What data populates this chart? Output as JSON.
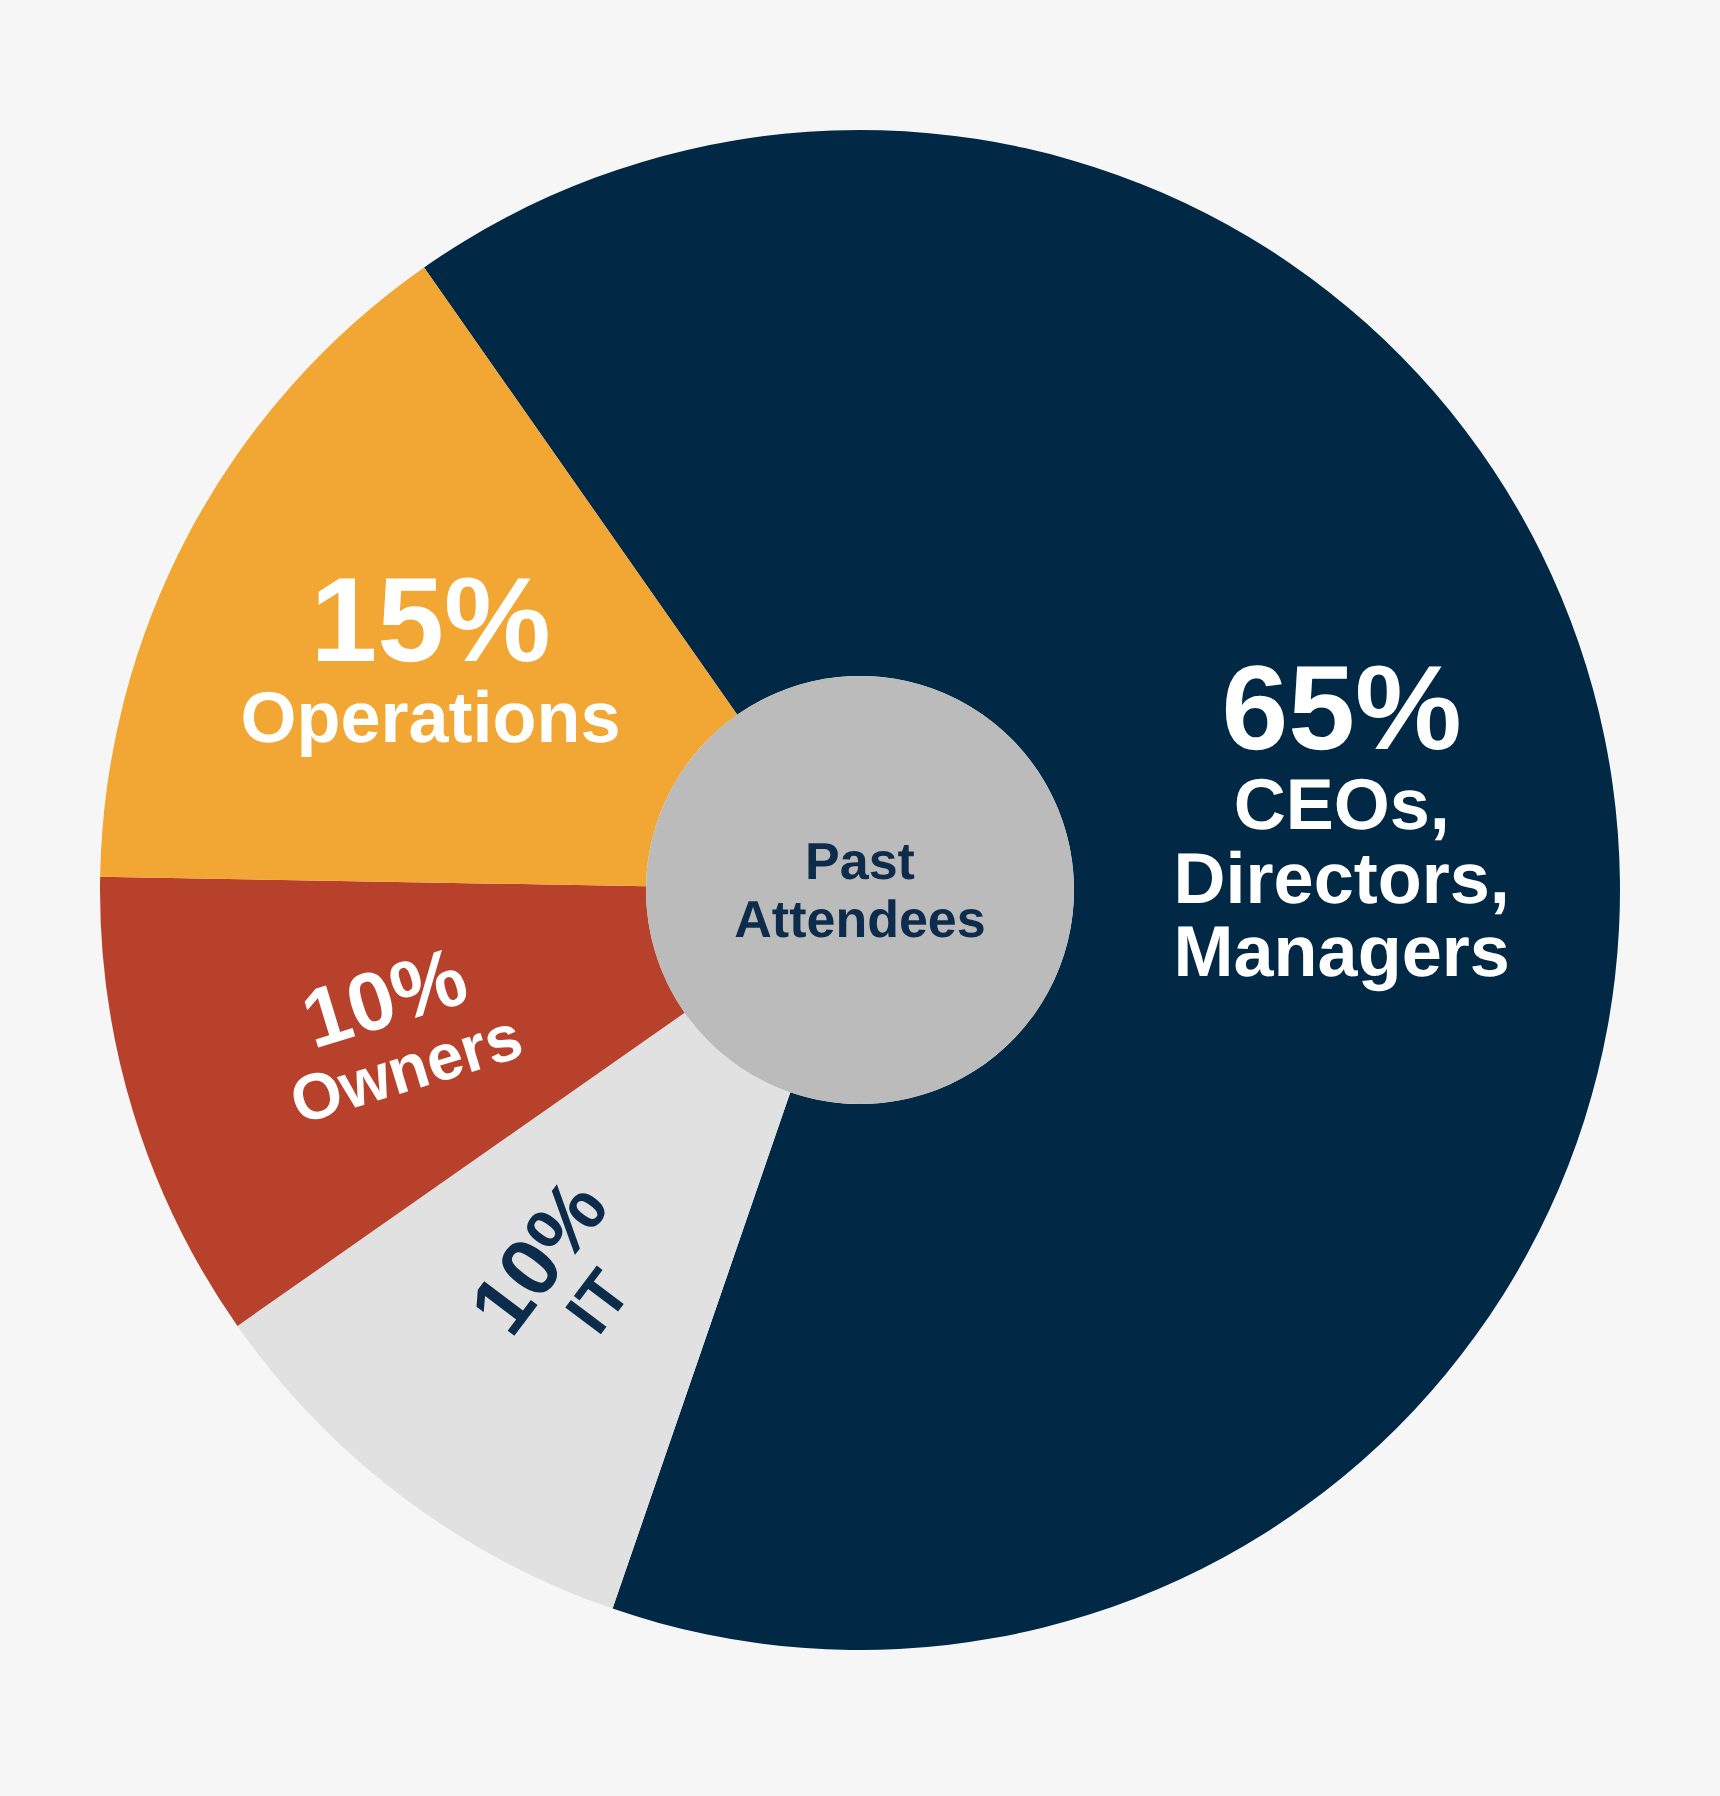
{
  "chart_data": {
    "type": "donut",
    "title": "Past Attendees",
    "categories": [
      "CEOs, Directors, Managers",
      "IT",
      "Owners",
      "Operations"
    ],
    "values": [
      65,
      10,
      10,
      15
    ],
    "colors": [
      "#012845",
      "#e1e1e1",
      "#b8412c",
      "#f2a633"
    ],
    "value_labels": [
      "65%",
      "10%",
      "10%",
      "15%"
    ]
  }
}
